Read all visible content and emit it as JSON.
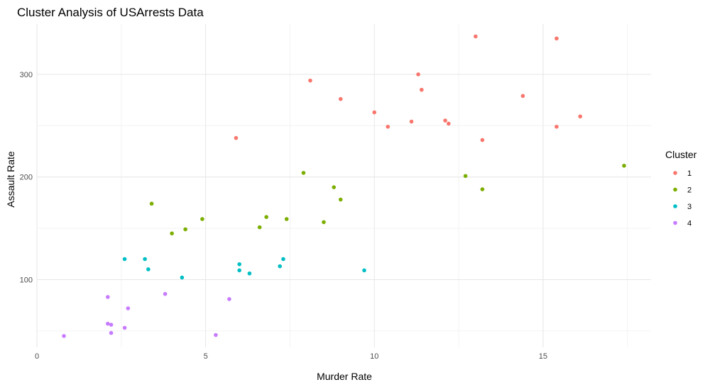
{
  "chart_data": {
    "type": "scatter",
    "title": "Cluster Analysis of USArrests Data",
    "xlabel": "Murder Rate",
    "ylabel": "Assault Rate",
    "xlim": [
      0,
      18.2
    ],
    "ylim": [
      34,
      349
    ],
    "x_ticks": [
      0,
      5,
      10,
      15
    ],
    "y_ticks": [
      100,
      200,
      300
    ],
    "grid": true,
    "legend_title": "Cluster",
    "legend_position": "right",
    "series": [
      {
        "name": "1",
        "color": "#F8766D",
        "points": [
          {
            "x": 13.0,
            "y": 337
          },
          {
            "x": 15.4,
            "y": 335
          },
          {
            "x": 8.1,
            "y": 294
          },
          {
            "x": 11.3,
            "y": 300
          },
          {
            "x": 11.4,
            "y": 285
          },
          {
            "x": 14.4,
            "y": 279
          },
          {
            "x": 9.0,
            "y": 276
          },
          {
            "x": 10.0,
            "y": 263
          },
          {
            "x": 16.1,
            "y": 259
          },
          {
            "x": 12.1,
            "y": 255
          },
          {
            "x": 12.2,
            "y": 252
          },
          {
            "x": 11.1,
            "y": 254
          },
          {
            "x": 10.4,
            "y": 249
          },
          {
            "x": 15.4,
            "y": 249
          },
          {
            "x": 5.9,
            "y": 238
          },
          {
            "x": 13.2,
            "y": 236
          }
        ]
      },
      {
        "name": "2",
        "color": "#7CAE00",
        "points": [
          {
            "x": 17.4,
            "y": 211
          },
          {
            "x": 7.9,
            "y": 204
          },
          {
            "x": 12.7,
            "y": 201
          },
          {
            "x": 8.8,
            "y": 190
          },
          {
            "x": 13.2,
            "y": 188
          },
          {
            "x": 9.0,
            "y": 178
          },
          {
            "x": 3.4,
            "y": 174
          },
          {
            "x": 6.8,
            "y": 161
          },
          {
            "x": 4.9,
            "y": 159
          },
          {
            "x": 7.4,
            "y": 159
          },
          {
            "x": 8.5,
            "y": 156
          },
          {
            "x": 6.6,
            "y": 151
          },
          {
            "x": 4.4,
            "y": 149
          },
          {
            "x": 4.0,
            "y": 145
          }
        ]
      },
      {
        "name": "3",
        "color": "#00BFC4",
        "points": [
          {
            "x": 2.6,
            "y": 120
          },
          {
            "x": 3.2,
            "y": 120
          },
          {
            "x": 7.3,
            "y": 120
          },
          {
            "x": 6.0,
            "y": 115
          },
          {
            "x": 7.2,
            "y": 113
          },
          {
            "x": 3.3,
            "y": 110
          },
          {
            "x": 6.0,
            "y": 109
          },
          {
            "x": 9.7,
            "y": 109
          },
          {
            "x": 6.3,
            "y": 106
          },
          {
            "x": 4.3,
            "y": 102
          }
        ]
      },
      {
        "name": "4",
        "color": "#C77CFF",
        "points": [
          {
            "x": 3.8,
            "y": 86
          },
          {
            "x": 2.1,
            "y": 83
          },
          {
            "x": 5.7,
            "y": 81
          },
          {
            "x": 2.7,
            "y": 72
          },
          {
            "x": 2.1,
            "y": 57
          },
          {
            "x": 2.2,
            "y": 56
          },
          {
            "x": 2.6,
            "y": 53
          },
          {
            "x": 2.2,
            "y": 48
          },
          {
            "x": 5.3,
            "y": 46
          },
          {
            "x": 0.8,
            "y": 45
          }
        ]
      }
    ]
  }
}
